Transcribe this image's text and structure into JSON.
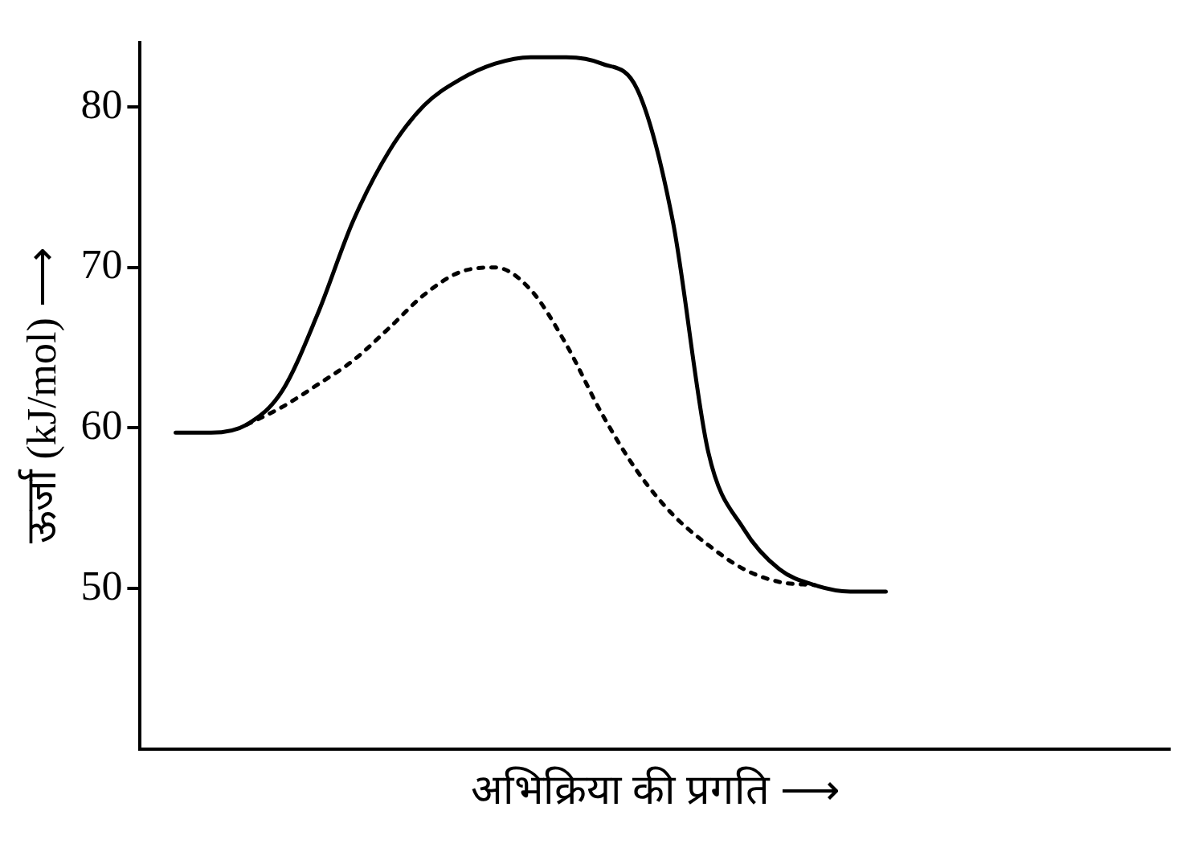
{
  "chart_data": {
    "type": "line",
    "xlabel": "अभिक्रिया की प्रगति ⟶",
    "ylabel": "ऊर्जा (kJ/mol) ⟶",
    "categories": [
      null,
      null,
      null,
      null,
      null,
      null,
      null,
      null,
      null,
      null,
      null,
      null,
      null,
      null,
      null,
      null,
      null,
      null,
      null,
      null,
      null,
      null,
      null,
      null,
      null,
      null,
      null,
      null,
      null,
      null
    ],
    "series": [
      {
        "color": "#000000",
        "line_style": "solid",
        "values": [
          null,
          59.7,
          59.7,
          60.2,
          62.3,
          67.1,
          72.9,
          77.2,
          80.1,
          81.7,
          82.7,
          83.1,
          83.1,
          82.7,
          81.1,
          72.9,
          58.5,
          53.7,
          51.2,
          50.2,
          49.8,
          49.8,
          null,
          null,
          null,
          null,
          null,
          null,
          null,
          null
        ]
      },
      {
        "color": "#000000",
        "line_style": "dotted",
        "values": [
          null,
          null,
          null,
          60.2,
          61.3,
          62.7,
          64.2,
          66.2,
          68.3,
          69.7,
          70,
          68.6,
          65.2,
          60.9,
          57.3,
          54.6,
          52.7,
          51.2,
          50.4,
          50.2,
          null,
          null,
          null,
          null,
          null,
          null,
          null,
          null,
          null,
          null
        ]
      }
    ],
    "ylim": [
      40,
      84
    ],
    "yticks": [
      50,
      60,
      70,
      80
    ],
    "grid": false,
    "legend": false,
    "tick_labels": "y",
    "marker": "none"
  }
}
